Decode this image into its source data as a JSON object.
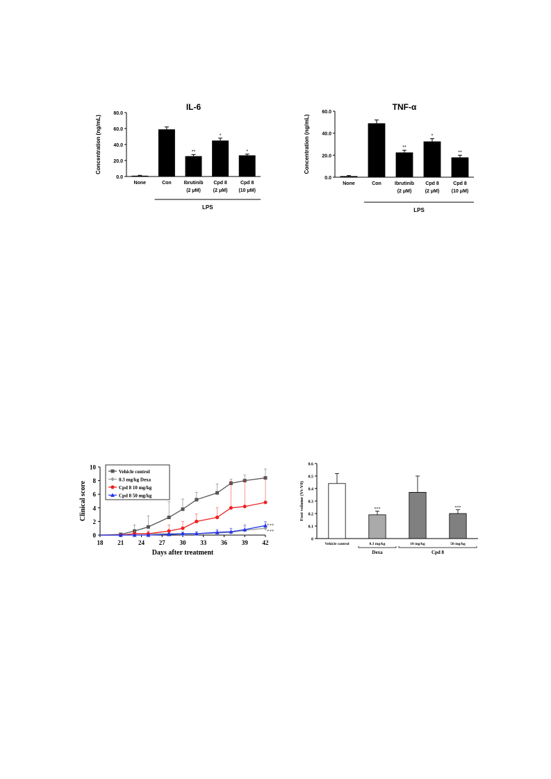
{
  "chart_data": [
    {
      "type": "bar",
      "title": "IL-6",
      "ylabel": "Concentration (ng/mL)",
      "xlabel": "",
      "ylim": [
        0,
        80
      ],
      "yticks": [
        "0.0",
        "20.0",
        "40.0",
        "60.0",
        "80.0"
      ],
      "categories": [
        [
          "None"
        ],
        [
          "Con"
        ],
        [
          "Ibrutinib",
          "(2 μM)"
        ],
        [
          "Cpd 8",
          "(2 μM)"
        ],
        [
          "Cpd 8",
          "(10 μM)"
        ]
      ],
      "values": [
        1,
        59,
        25.5,
        45,
        26.5
      ],
      "errors": [
        0.5,
        3,
        2,
        3,
        1.5
      ],
      "annotations": [
        "",
        "",
        "**",
        "*",
        "*"
      ],
      "group_label": "LPS",
      "bar_color": "#000000"
    },
    {
      "type": "bar",
      "title": "TNF-α",
      "ylabel": "Concentration (ng/mL)",
      "xlabel": "",
      "ylim": [
        0,
        60
      ],
      "yticks": [
        "0.0",
        "20.0",
        "40.0",
        "60.0"
      ],
      "categories": [
        [
          "None"
        ],
        [
          "Con"
        ],
        [
          "Ibrutinib",
          "(2 μM)"
        ],
        [
          "Cpd 8",
          "(2 μM)"
        ],
        [
          "Cpd 8",
          "(10 μM)"
        ]
      ],
      "values": [
        1,
        49,
        22.5,
        32.5,
        18
      ],
      "errors": [
        0.5,
        3,
        2,
        2.5,
        2
      ],
      "annotations": [
        "",
        "",
        "**",
        "*",
        "**"
      ],
      "group_label": "LPS",
      "bar_color": "#000000"
    },
    {
      "type": "line",
      "title": "",
      "xlabel": "Days after treatment",
      "ylabel": "Clinical score",
      "xlim": [
        18,
        42
      ],
      "ylim": [
        0,
        10
      ],
      "xticks": [
        18,
        21,
        24,
        27,
        30,
        33,
        36,
        39,
        42
      ],
      "yticks": [
        0,
        2,
        4,
        6,
        8,
        10
      ],
      "legend": "top-left",
      "series": [
        {
          "name": "Vehicle control",
          "color": "#555555",
          "marker": "square",
          "x": [
            21,
            23,
            25,
            28,
            30,
            32,
            35,
            37,
            39,
            42
          ],
          "y": [
            0.1,
            0.6,
            1.2,
            2.6,
            3.8,
            5.2,
            6.2,
            7.6,
            8.0,
            8.4
          ],
          "err": [
            0.2,
            0.9,
            1.6,
            2.3,
            1.5,
            1.1,
            1.3,
            0.6,
            0.8,
            1.3
          ]
        },
        {
          "name": "0.3 mg/kg Dexa",
          "color": "#999999",
          "marker": "diamond",
          "x": [
            21,
            23,
            25,
            28,
            30,
            32,
            35,
            37,
            39,
            42
          ],
          "y": [
            0,
            0.2,
            0.2,
            0.2,
            0.2,
            0.2,
            0.3,
            0.4,
            0.7,
            1.0
          ],
          "err": [
            0,
            0.3,
            0.3,
            0.3,
            0.3,
            0.3,
            0.4,
            0.6,
            0.9,
            0.8
          ]
        },
        {
          "name": "Cpd 8 10 mg/kg",
          "color": "#ee2222",
          "marker": "circle",
          "x": [
            21,
            23,
            25,
            28,
            30,
            32,
            35,
            37,
            39,
            42
          ],
          "y": [
            0,
            0.2,
            0.2,
            0.6,
            1.0,
            2.0,
            2.6,
            4.0,
            4.2,
            4.8
          ],
          "err": [
            0,
            0.3,
            0.4,
            0.9,
            1.0,
            1.1,
            1.4,
            3.9,
            3.8,
            3.6
          ]
        },
        {
          "name": "Cpd 8  50 mg/kg",
          "color": "#2233ee",
          "marker": "triangle",
          "x": [
            21,
            23,
            25,
            28,
            30,
            32,
            35,
            37,
            39,
            42
          ],
          "y": [
            0,
            0,
            0,
            0.1,
            0.2,
            0.2,
            0.4,
            0.5,
            0.8,
            1.4
          ],
          "err": [
            0,
            0,
            0,
            0.2,
            0.2,
            0.3,
            0.4,
            0.5,
            0.6,
            0.6
          ]
        }
      ],
      "end_annotations": [
        "***",
        "***"
      ]
    },
    {
      "type": "bar",
      "title": "",
      "xlabel": "",
      "ylabel": "Foot volume (Vt-V0)",
      "ylim": [
        0,
        0.6
      ],
      "yticks": [
        "0",
        "0.1",
        "0.2",
        "0.3",
        "0.4",
        "0.5",
        "0.6"
      ],
      "categories": [
        "Vehicle control",
        "0.3 mg/kg",
        "10 mg/kg",
        "50 mg/kg"
      ],
      "values": [
        0.44,
        0.19,
        0.37,
        0.2
      ],
      "errors": [
        0.08,
        0.03,
        0.13,
        0.03
      ],
      "colors": [
        "#ffffff",
        "#aaaaaa",
        "#808080",
        "#808080"
      ],
      "annotations": [
        "",
        "***",
        "",
        "***"
      ],
      "group_labels": [
        {
          "label": "Dexa",
          "from": 1,
          "to": 1
        },
        {
          "label": "Cpd 8",
          "from": 2,
          "to": 3
        }
      ]
    }
  ]
}
